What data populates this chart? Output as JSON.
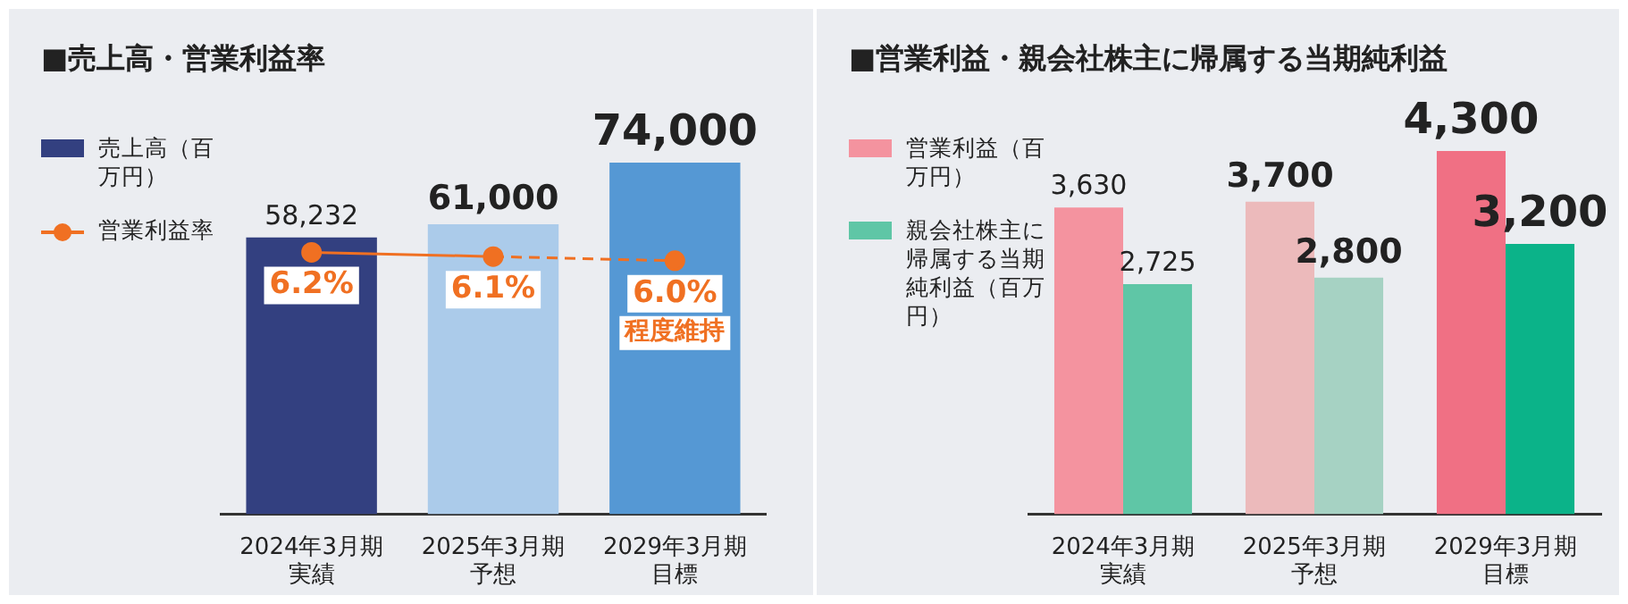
{
  "chart_data": [
    {
      "type": "bar",
      "title": "■売上高・営業利益率",
      "categories": [
        "2024年3月期実績",
        "2025年3月期予想",
        "2029年3月期目標"
      ],
      "tick_labels": "x",
      "legend": "left",
      "grid": false,
      "marker": "circle",
      "series": [
        {
          "name": "売上高（百万円）",
          "color": "#334080",
          "colors": [
            "#334080",
            "#abcbea",
            "#5598d4"
          ],
          "values": [
            58232,
            61000,
            74000
          ],
          "value_labels": [
            "58,232",
            "61,000",
            "74,000"
          ]
        },
        {
          "name": "営業利益率",
          "type": "line",
          "axis": "y2",
          "color": "#f07022",
          "line_style": [
            "solid",
            "dashed"
          ],
          "values": [
            6.2,
            6.1,
            6.0
          ],
          "value_labels": [
            "6.2%",
            "6.1%",
            "6.0%"
          ]
        }
      ],
      "annotations": [
        "程度維持"
      ]
    },
    {
      "type": "bar",
      "title": "■営業利益・親会社株主に帰属する当期純利益",
      "categories": [
        "2024年3月期実績",
        "2025年3月期予想",
        "2029年3月期目標"
      ],
      "tick_labels": "x",
      "legend": "left",
      "grid": false,
      "series": [
        {
          "name": "営業利益（百万円）",
          "color": "#f4939f",
          "colors": [
            "#f4939f",
            "#ecbabb",
            "#f07084"
          ],
          "values": [
            3630,
            3700,
            4300
          ],
          "value_labels": [
            "3,630",
            "3,700",
            "4,300"
          ]
        },
        {
          "name": "親会社株主に帰属する当期純利益（百万円）",
          "color": "#5fc6a6",
          "colors": [
            "#5fc6a6",
            "#a6d2c3",
            "#0bb389"
          ],
          "values": [
            2725,
            2800,
            3200
          ],
          "value_labels": [
            "2,725",
            "2,800",
            "3,200"
          ]
        }
      ]
    }
  ]
}
